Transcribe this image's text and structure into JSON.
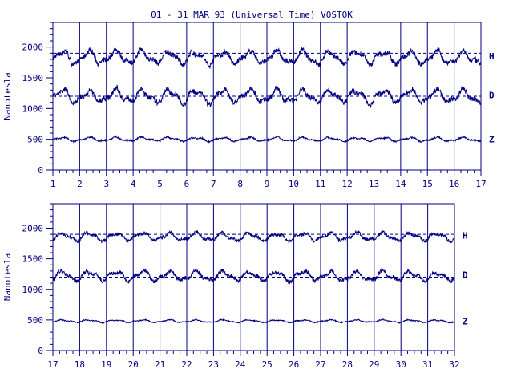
{
  "title": "01 - 31 MAR 93 (Universal Time) VOSTOK",
  "colors": {
    "ink": "#000080",
    "background": "#ffffff"
  },
  "chart_data": [
    {
      "type": "line",
      "ylabel": "Nanotesla",
      "x_ticks": [
        "1",
        "2",
        "3",
        "4",
        "5",
        "6",
        "7",
        "8",
        "9",
        "10",
        "11",
        "12",
        "13",
        "14",
        "15",
        "16",
        "17"
      ],
      "xlim": [
        1,
        17
      ],
      "ylim": [
        0,
        2400
      ],
      "y_ticks": [
        "0",
        "500",
        "1000",
        "1500",
        "2000"
      ],
      "grid": "vertical lines at each day",
      "series": [
        {
          "name": "H",
          "baseline": 1900,
          "level": 1830,
          "amplitude": 150
        },
        {
          "name": "D",
          "baseline": 1200,
          "level": 1200,
          "amplitude": 150
        },
        {
          "name": "Z",
          "baseline": null,
          "level": 500,
          "amplitude": 45
        }
      ]
    },
    {
      "type": "line",
      "ylabel": "Nanotesla",
      "x_ticks": [
        "17",
        "18",
        "19",
        "20",
        "21",
        "22",
        "23",
        "24",
        "25",
        "26",
        "27",
        "28",
        "29",
        "30",
        "31",
        "32"
      ],
      "xlim": [
        17,
        32
      ],
      "ylim": [
        0,
        2400
      ],
      "y_ticks": [
        "0",
        "500",
        "1000",
        "1500",
        "2000"
      ],
      "grid": "vertical lines at each day",
      "series": [
        {
          "name": "H",
          "baseline": 1900,
          "level": 1860,
          "amplitude": 90
        },
        {
          "name": "D",
          "baseline": 1200,
          "level": 1220,
          "amplitude": 110
        },
        {
          "name": "Z",
          "baseline": null,
          "level": 480,
          "amplitude": 30
        }
      ]
    }
  ]
}
